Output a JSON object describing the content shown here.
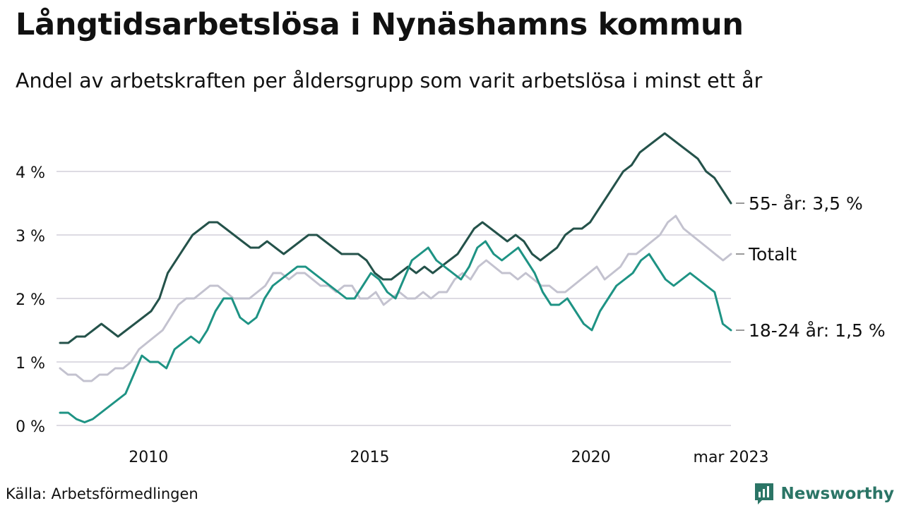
{
  "header": {
    "title": "Långtidsarbetslösa i Nynäshamns kommun",
    "subtitle": "Andel av arbetskraften per åldersgrupp som varit arbetslösa i minst ett år"
  },
  "footer": {
    "source": "Källa: Arbetsförmedlingen",
    "brand": "Newsworthy",
    "brand_color": "#2b7566"
  },
  "chart_data": {
    "type": "line",
    "x_start": "2008-01",
    "x_end": "2023-03",
    "x_interval": "quarter",
    "x_ticks": [
      {
        "label": "2010",
        "date": "2010-01"
      },
      {
        "label": "2015",
        "date": "2015-01"
      },
      {
        "label": "2020",
        "date": "2020-01"
      },
      {
        "label": "mar 2023",
        "date": "2023-03"
      }
    ],
    "y_ticks": [
      {
        "label": "0 %",
        "value": 0
      },
      {
        "label": "1 %",
        "value": 1
      },
      {
        "label": "2 %",
        "value": 2
      },
      {
        "label": "3 %",
        "value": 3
      },
      {
        "label": "4 %",
        "value": 4
      }
    ],
    "ylim": [
      0,
      4.7
    ],
    "grid": true,
    "legend": "end-labels",
    "series": [
      {
        "name": "Totalt",
        "end_label": "Totalt",
        "color": "#c3c2cf",
        "values": [
          0.9,
          0.8,
          0.8,
          0.7,
          0.7,
          0.8,
          0.8,
          0.9,
          0.9,
          1.0,
          1.2,
          1.3,
          1.4,
          1.5,
          1.7,
          1.9,
          2.0,
          2.0,
          2.1,
          2.2,
          2.2,
          2.1,
          2.0,
          2.0,
          2.0,
          2.1,
          2.2,
          2.4,
          2.4,
          2.3,
          2.4,
          2.4,
          2.3,
          2.2,
          2.2,
          2.1,
          2.2,
          2.2,
          2.0,
          2.0,
          2.1,
          1.9,
          2.0,
          2.1,
          2.0,
          2.0,
          2.1,
          2.0,
          2.1,
          2.1,
          2.3,
          2.4,
          2.3,
          2.5,
          2.6,
          2.5,
          2.4,
          2.4,
          2.3,
          2.4,
          2.3,
          2.2,
          2.2,
          2.1,
          2.1,
          2.2,
          2.3,
          2.4,
          2.5,
          2.3,
          2.4,
          2.5,
          2.7,
          2.7,
          2.8,
          2.9,
          3.0,
          3.2,
          3.3,
          3.1,
          3.0,
          2.9,
          2.8,
          2.7,
          2.6,
          2.7
        ]
      },
      {
        "name": "55- år",
        "end_label": "55- år: 3,5 %",
        "color": "#24524a",
        "values": [
          1.3,
          1.3,
          1.4,
          1.4,
          1.5,
          1.6,
          1.5,
          1.4,
          1.5,
          1.6,
          1.7,
          1.8,
          2.0,
          2.4,
          2.6,
          2.8,
          3.0,
          3.1,
          3.2,
          3.2,
          3.1,
          3.0,
          2.9,
          2.8,
          2.8,
          2.9,
          2.8,
          2.7,
          2.8,
          2.9,
          3.0,
          3.0,
          2.9,
          2.8,
          2.7,
          2.7,
          2.7,
          2.6,
          2.4,
          2.3,
          2.3,
          2.4,
          2.5,
          2.4,
          2.5,
          2.4,
          2.5,
          2.6,
          2.7,
          2.9,
          3.1,
          3.2,
          3.1,
          3.0,
          2.9,
          3.0,
          2.9,
          2.7,
          2.6,
          2.7,
          2.8,
          3.0,
          3.1,
          3.1,
          3.2,
          3.4,
          3.6,
          3.8,
          4.0,
          4.1,
          4.3,
          4.4,
          4.5,
          4.6,
          4.5,
          4.4,
          4.3,
          4.2,
          4.0,
          3.9,
          3.7,
          3.5
        ]
      },
      {
        "name": "18-24 år",
        "end_label": "18-24 år: 1,5 %",
        "color": "#1e9384",
        "values": [
          0.2,
          0.2,
          0.1,
          0.05,
          0.1,
          0.2,
          0.3,
          0.4,
          0.5,
          0.8,
          1.1,
          1.0,
          1.0,
          0.9,
          1.2,
          1.3,
          1.4,
          1.3,
          1.5,
          1.8,
          2.0,
          2.0,
          1.7,
          1.6,
          1.7,
          2.0,
          2.2,
          2.3,
          2.4,
          2.5,
          2.5,
          2.4,
          2.3,
          2.2,
          2.1,
          2.0,
          2.0,
          2.2,
          2.4,
          2.3,
          2.1,
          2.0,
          2.3,
          2.6,
          2.7,
          2.8,
          2.6,
          2.5,
          2.4,
          2.3,
          2.5,
          2.8,
          2.9,
          2.7,
          2.6,
          2.7,
          2.8,
          2.6,
          2.4,
          2.1,
          1.9,
          1.9,
          2.0,
          1.8,
          1.6,
          1.5,
          1.8,
          2.0,
          2.2,
          2.3,
          2.4,
          2.6,
          2.7,
          2.5,
          2.3,
          2.2,
          2.3,
          2.4,
          2.3,
          2.2,
          2.1,
          1.6,
          1.5
        ]
      }
    ]
  }
}
